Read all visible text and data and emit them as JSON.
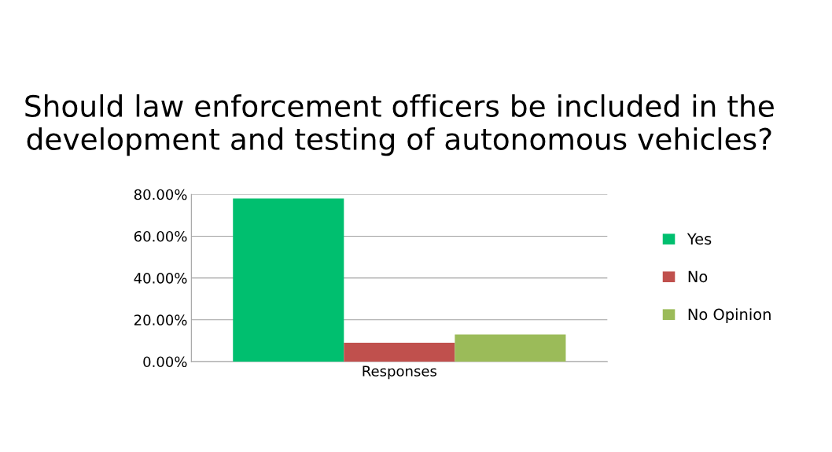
{
  "chart_data": {
    "type": "bar",
    "title": "Should law enforcement officers be included in the development and testing of autonomous vehicles?",
    "categories": [
      "Responses"
    ],
    "series": [
      {
        "name": "Yes",
        "color": "#00bf6f",
        "values": [
          78
        ]
      },
      {
        "name": "No",
        "color": "#c0504d",
        "values": [
          9
        ]
      },
      {
        "name": "No Opinion",
        "color": "#9bbb59",
        "values": [
          13
        ]
      }
    ],
    "ylim": [
      0,
      80
    ],
    "yticks": [
      {
        "value": 0,
        "label": "0.00%"
      },
      {
        "value": 20,
        "label": "20.00%"
      },
      {
        "value": 40,
        "label": "40.00%"
      },
      {
        "value": 60,
        "label": "60.00%"
      },
      {
        "value": 80,
        "label": "80.00%"
      }
    ],
    "grid": "y",
    "legend": "right"
  }
}
